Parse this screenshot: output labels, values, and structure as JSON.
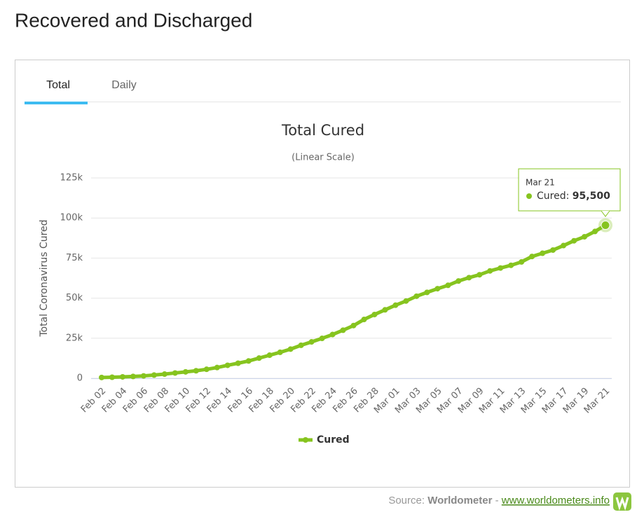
{
  "page": {
    "heading": "Recovered and Discharged",
    "tabs": [
      "Total",
      "Daily"
    ],
    "source": {
      "prefix": "Source:",
      "name": "Worldometer",
      "separator": "-",
      "link": "www.worldometers.info"
    }
  },
  "chart_data": {
    "type": "line",
    "title": "Total Cured",
    "subtitle": "(Linear Scale)",
    "y_label": "Total Coronavirus Cured",
    "categories": [
      "Feb 02",
      null,
      "Feb 04",
      null,
      "Feb 06",
      null,
      "Feb 08",
      null,
      "Feb 10",
      null,
      "Feb 12",
      null,
      "Feb 14",
      null,
      "Feb 16",
      null,
      "Feb 18",
      null,
      "Feb 20",
      null,
      "Feb 22",
      null,
      "Feb 24",
      null,
      "Feb 26",
      null,
      "Feb 28",
      null,
      "Mar 01",
      null,
      "Mar 03",
      null,
      "Mar 05",
      null,
      "Mar 07",
      null,
      "Mar 09",
      null,
      "Mar 11",
      null,
      "Mar 13",
      null,
      "Mar 15",
      null,
      "Mar 17",
      null,
      "Mar 19",
      null,
      "Mar 21"
    ],
    "series": [
      {
        "name": "Cured",
        "color": "#86c41f",
        "values": [
          500,
          650,
          900,
          1150,
          1500,
          2000,
          2600,
          3300,
          4000,
          4700,
          5600,
          6700,
          8100,
          9400,
          10800,
          12600,
          14400,
          16200,
          18200,
          20600,
          22700,
          24900,
          27300,
          30000,
          32900,
          36700,
          39800,
          42700,
          45600,
          48200,
          51200,
          53600,
          55900,
          58000,
          60700,
          62800,
          64600,
          67000,
          68800,
          70500,
          72600,
          76000,
          78000,
          80000,
          82800,
          85800,
          88300,
          91600,
          95500
        ],
        "value_labels": [
          null,
          null,
          null,
          null,
          null,
          null,
          null,
          null,
          null,
          null,
          null,
          null,
          null,
          null,
          null,
          null,
          null,
          null,
          null,
          null,
          null,
          null,
          null,
          null,
          null,
          null,
          null,
          null,
          null,
          null,
          null,
          null,
          null,
          null,
          null,
          null,
          null,
          null,
          null,
          null,
          null,
          null,
          null,
          null,
          null,
          null,
          null,
          null,
          "95,500"
        ]
      }
    ],
    "ylim": [
      0,
      125000
    ],
    "yticks": [
      0,
      {
        "value": 25000,
        "label": "25k"
      },
      {
        "value": 50000,
        "label": "50k"
      },
      {
        "value": 75000,
        "label": "75k"
      },
      {
        "value": 100000,
        "label": "100k"
      },
      {
        "value": 125000,
        "label": "125k"
      }
    ],
    "grid": true,
    "legend": "bottom"
  }
}
